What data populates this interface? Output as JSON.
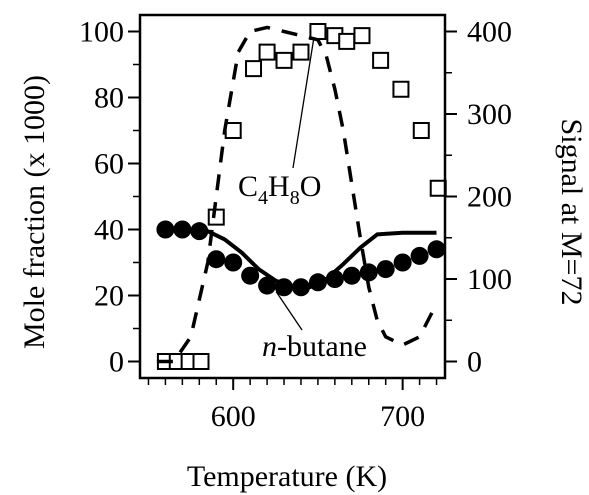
{
  "chart_data": {
    "type": "scatter",
    "xlabel": "Temperature (K)",
    "ylabel": "Mole fraction (x 1000)",
    "y2label": "Signal at M=72",
    "xlim": [
      545,
      725
    ],
    "ylim": [
      -5,
      105
    ],
    "y2lim": [
      -20,
      420
    ],
    "x_ticks": [
      600,
      700
    ],
    "y_ticks": [
      0,
      20,
      40,
      60,
      80,
      100
    ],
    "y2_ticks": [
      0,
      100,
      200,
      300,
      400
    ],
    "grid": false,
    "series": [
      {
        "axis": "left",
        "style": "filled-circle-markers",
        "x": [
          560,
          570,
          580,
          590,
          600,
          610,
          620,
          630,
          640,
          650,
          660,
          670,
          680,
          690,
          700,
          710,
          720
        ],
        "y": [
          40,
          40,
          39.5,
          31,
          30,
          26,
          23,
          22.5,
          22.5,
          24,
          25,
          26,
          27,
          28,
          30,
          32,
          34
        ]
      },
      {
        "axis": "left",
        "style": "solid-line",
        "x": [
          555,
          570,
          585,
          595,
          605,
          615,
          625,
          635,
          645,
          655,
          665,
          675,
          685,
          700,
          720
        ],
        "y": [
          40,
          40,
          39.5,
          37,
          33,
          28,
          24.5,
          22.5,
          22.5,
          25,
          29.5,
          34.5,
          38.5,
          39,
          39
        ]
      },
      {
        "axis": "right",
        "style": "open-square-markers",
        "x": [
          560,
          567,
          574,
          581,
          590,
          600,
          612,
          620,
          630,
          640,
          650,
          660,
          667,
          676,
          687,
          699,
          711,
          721
        ],
        "y": [
          0,
          0,
          0,
          0,
          175,
          280,
          355,
          375,
          365,
          375,
          400,
          395,
          388,
          395,
          365,
          330,
          280,
          210
        ]
      },
      {
        "axis": "right",
        "style": "dashed-line",
        "x": [
          555,
          565,
          575,
          585,
          595,
          603,
          610,
          620,
          630,
          640,
          650,
          655,
          660,
          665,
          670,
          675,
          680,
          685,
          690,
          700,
          710,
          720
        ],
        "y": [
          0,
          0,
          30,
          120,
          280,
          375,
          400,
          405,
          400,
          395,
          390,
          370,
          330,
          280,
          215,
          150,
          90,
          50,
          30,
          20,
          30,
          70
        ]
      }
    ],
    "annotations": [
      {
        "text": "C",
        "sub1": "4",
        "mid": "H",
        "sub2": "8",
        "tail": "O",
        "target_x": 650,
        "target_y_right": 400
      },
      {
        "prefix": "n",
        "text": "-butane",
        "target_x": 623,
        "target_y": 23
      }
    ]
  }
}
